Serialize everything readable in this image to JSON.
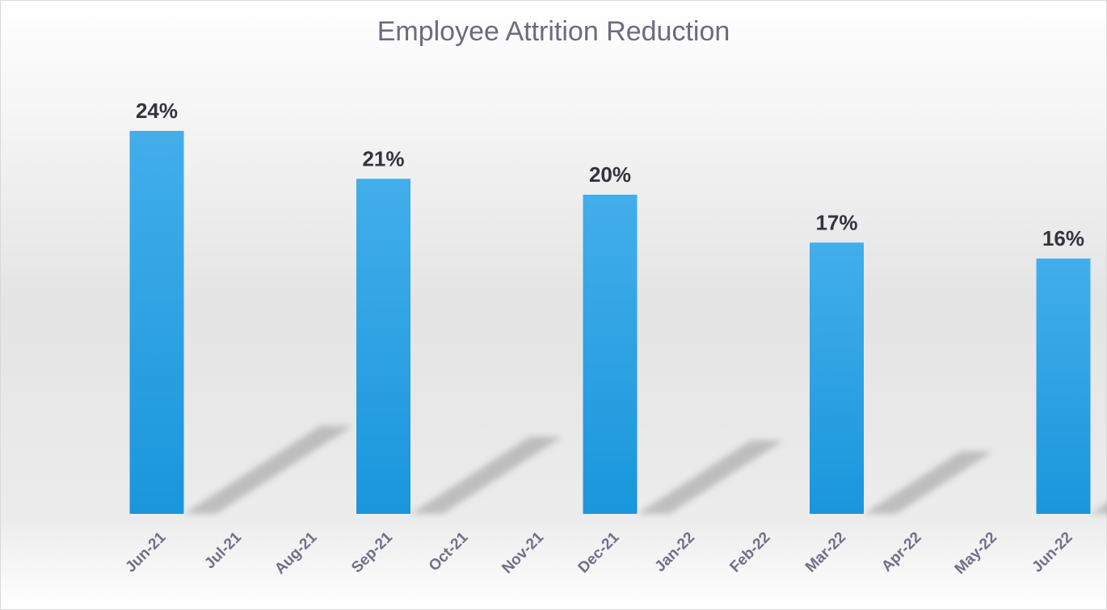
{
  "chart_data": {
    "type": "bar",
    "title": "Employee Attrition Reduction",
    "categories": [
      "Jun-21",
      "Jul-21",
      "Aug-21",
      "Sep-21",
      "Oct-21",
      "Nov-21",
      "Dec-21",
      "Jan-22",
      "Feb-22",
      "Mar-22",
      "Apr-22",
      "May-22",
      "Jun-22"
    ],
    "values": [
      24,
      null,
      null,
      21,
      null,
      null,
      20,
      null,
      null,
      17,
      null,
      null,
      16
    ],
    "data_labels": [
      "24%",
      "",
      "",
      "21%",
      "",
      "",
      "20%",
      "",
      "",
      "17%",
      "",
      "",
      "16%"
    ],
    "unit": "%",
    "xlabel": "",
    "ylabel": "",
    "ylim": [
      0,
      24
    ],
    "grid": false,
    "legend": "none",
    "colors": {
      "bar_top": "#42aeea",
      "bar_bottom": "#1a96dc",
      "title": "#6b6b80",
      "tick_label": "#6f7088",
      "data_label": "#333340"
    }
  }
}
